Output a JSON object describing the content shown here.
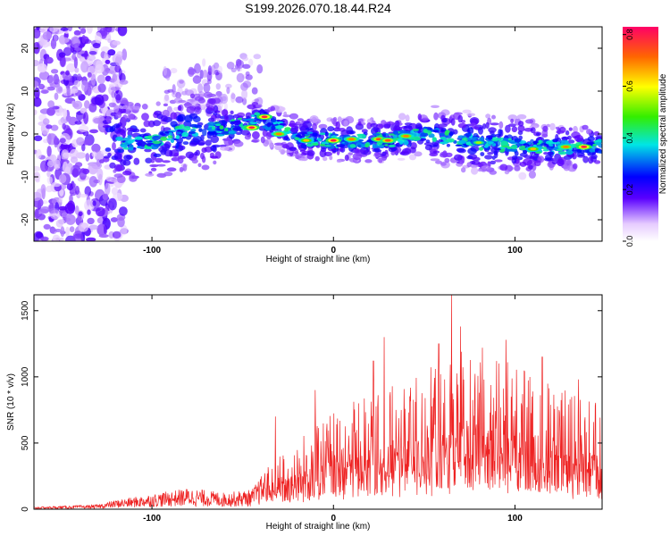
{
  "page": {
    "title": "S199.2026.070.18.44.R24"
  },
  "chart_data": [
    {
      "type": "heatmap",
      "title": "S199.2026.070.18.44.R24",
      "xlabel": "Height of straight line (km)",
      "ylabel": "Frequency (Hz)",
      "xlim": [
        -165,
        148
      ],
      "ylim": [
        -25,
        25
      ],
      "xticks": [
        -100,
        0,
        100
      ],
      "yticks": [
        -20,
        -10,
        0,
        10,
        20
      ],
      "colorbar": {
        "label": "Normalized spectral amplitude",
        "range": [
          0.0,
          0.83
        ],
        "ticks": [
          0.0,
          0.2,
          0.4,
          0.6,
          0.8
        ]
      },
      "ridge": [
        [
          -120,
          -2
        ],
        [
          -100,
          -2
        ],
        [
          -80,
          1
        ],
        [
          -60,
          1
        ],
        [
          -40,
          3.5
        ],
        [
          -20,
          -1
        ],
        [
          0,
          -1.5
        ],
        [
          30,
          -1.5
        ],
        [
          50,
          0
        ],
        [
          80,
          -2
        ],
        [
          110,
          -3
        ],
        [
          130,
          -3
        ],
        [
          145,
          -3
        ]
      ],
      "hotspots": [
        [
          -45,
          1.5,
          0.8
        ],
        [
          -38,
          4,
          0.8
        ],
        [
          -30,
          0,
          0.7
        ],
        [
          -15,
          -1.5,
          0.65
        ],
        [
          0,
          -1.5,
          0.8
        ],
        [
          10,
          -1.2,
          0.7
        ],
        [
          25,
          -1.2,
          0.75
        ],
        [
          30,
          -1.5,
          0.75
        ],
        [
          40,
          -0.5,
          0.7
        ],
        [
          80,
          -2,
          0.55
        ],
        [
          110,
          -3.5,
          0.65
        ],
        [
          128,
          -3,
          0.7
        ],
        [
          138,
          -3,
          0.8
        ]
      ]
    },
    {
      "type": "line",
      "xlabel": "Height of straight line (km)",
      "ylabel": "SNR (10 * v/v)",
      "xlim": [
        -165,
        148
      ],
      "ylim": [
        0,
        1620
      ],
      "xticks": [
        -100,
        0,
        100
      ],
      "yticks": [
        0,
        500,
        1000,
        1500
      ],
      "color": "#ee2222",
      "envelope": [
        [
          -165,
          15
        ],
        [
          -130,
          30
        ],
        [
          -120,
          60
        ],
        [
          -100,
          100
        ],
        [
          -80,
          140
        ],
        [
          -60,
          110
        ],
        [
          -45,
          130
        ],
        [
          -35,
          300
        ],
        [
          -25,
          400
        ],
        [
          -10,
          550
        ],
        [
          0,
          650
        ],
        [
          20,
          750
        ],
        [
          40,
          850
        ],
        [
          60,
          1000
        ],
        [
          75,
          1100
        ],
        [
          90,
          1000
        ],
        [
          110,
          900
        ],
        [
          130,
          780
        ],
        [
          148,
          700
        ]
      ],
      "peaks": [
        [
          -32,
          700
        ],
        [
          -10,
          900
        ],
        [
          22,
          1120
        ],
        [
          28,
          1300
        ],
        [
          58,
          1250
        ],
        [
          65,
          1620
        ],
        [
          70,
          1380
        ],
        [
          82,
          1220
        ],
        [
          95,
          1280
        ],
        [
          115,
          1150
        ],
        [
          135,
          980
        ]
      ]
    }
  ]
}
